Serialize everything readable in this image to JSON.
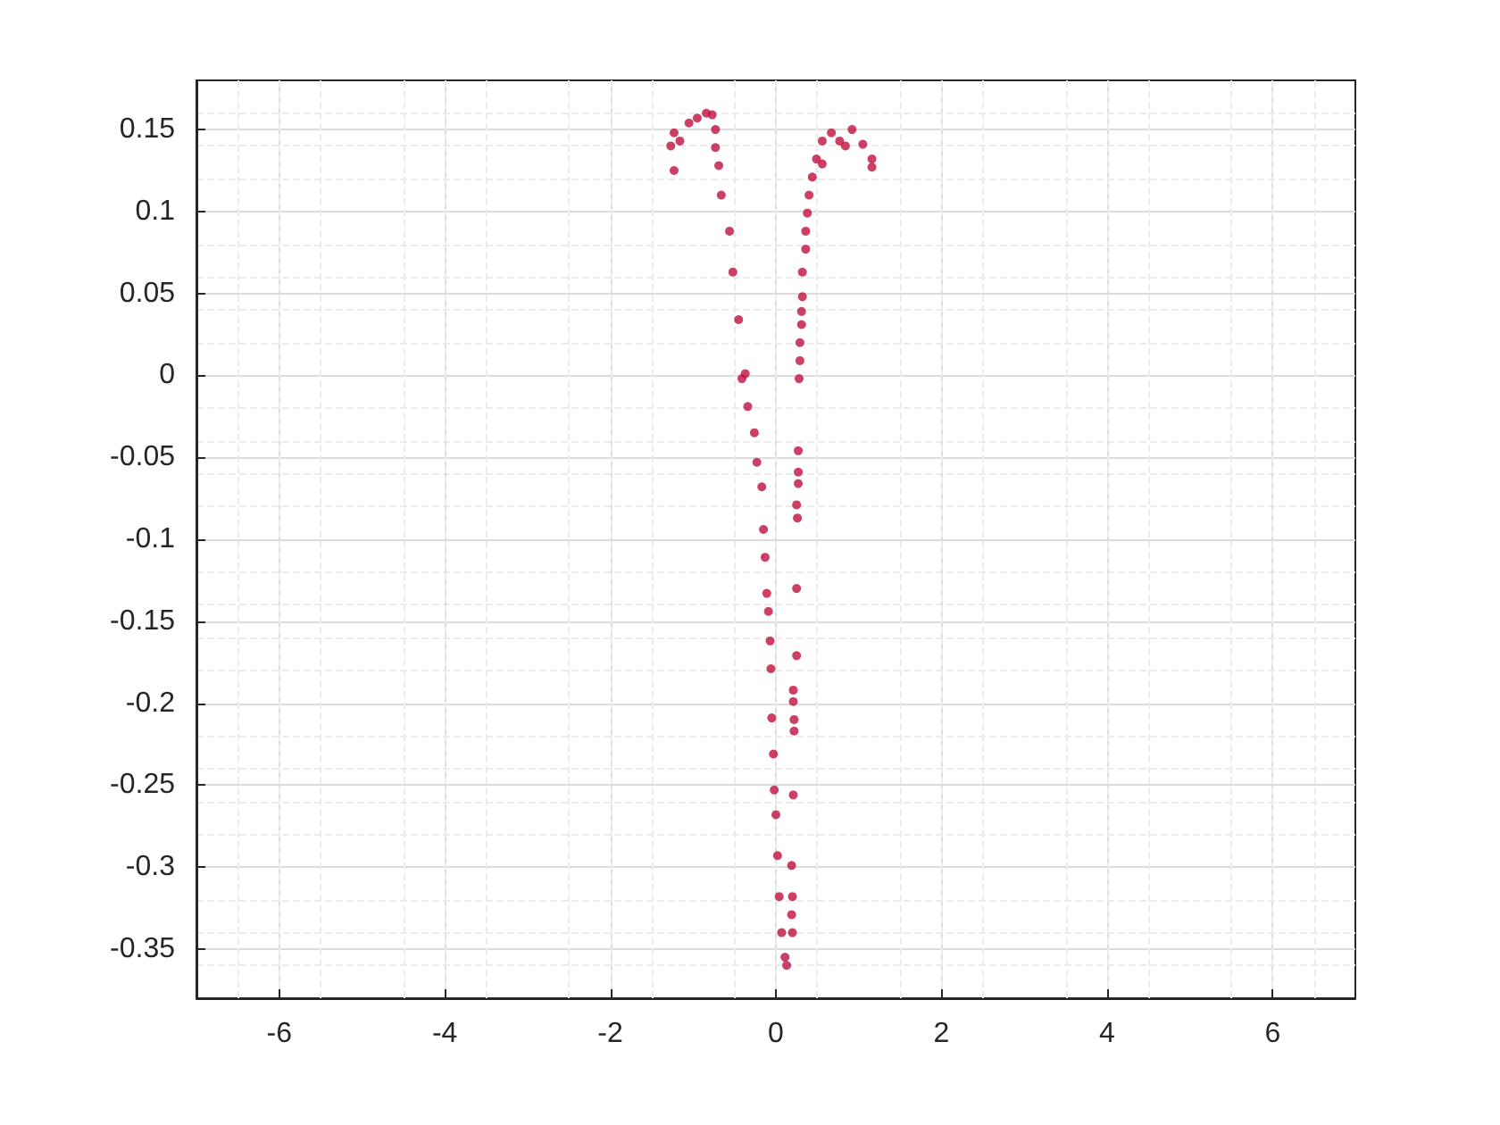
{
  "chart_data": {
    "type": "scatter",
    "marker": "circle",
    "grid": true,
    "xlim": [
      -7,
      7
    ],
    "xticks": [
      -6,
      -4,
      -2,
      0,
      2,
      4,
      6
    ],
    "ylim": [
      -0.38,
      0.18
    ],
    "yticks": [
      -0.35,
      -0.3,
      -0.25,
      -0.2,
      -0.15,
      -0.1,
      -0.05,
      0,
      0.05,
      0.1,
      0.15
    ],
    "series": [
      {
        "color": "#c0103f",
        "x": [
          -1.23,
          -1.27,
          -1.23,
          -1.16,
          -1.05,
          -0.95,
          -0.84,
          -0.77,
          -0.73,
          -0.73,
          -0.69,
          -0.66,
          -0.56,
          -0.52,
          -0.45,
          -0.41,
          -0.37,
          -0.34,
          -0.26,
          -0.23,
          -0.17,
          -0.15,
          -0.13,
          -0.11,
          -0.09,
          -0.07,
          -0.06,
          -0.05,
          -0.03,
          -0.02,
          0,
          0.02,
          0.04,
          0.07,
          0.11,
          0.13,
          0.2,
          0.19,
          0.2,
          0.19,
          0.21,
          0.22,
          0.22,
          0.21,
          0.21,
          0.25,
          0.25,
          0.26,
          0.25,
          0.27,
          0.27,
          0.27,
          0.28,
          0.29,
          0.29,
          0.31,
          0.31,
          0.32,
          0.32,
          0.36,
          0.36,
          0.38,
          0.4,
          0.44,
          0.49,
          0.56,
          0.56,
          0.67,
          0.77,
          0.84,
          0.92,
          1.05,
          1.16,
          1.16
        ],
        "values": [
          0.125,
          0.14,
          0.148,
          0.143,
          0.154,
          0.157,
          0.16,
          0.159,
          0.15,
          0.139,
          0.128,
          0.11,
          0.088,
          0.063,
          0.034,
          -0.002,
          0.001,
          -0.019,
          -0.035,
          -0.053,
          -0.068,
          -0.094,
          -0.111,
          -0.133,
          -0.144,
          -0.162,
          -0.179,
          -0.209,
          -0.231,
          -0.253,
          -0.268,
          -0.293,
          -0.318,
          -0.34,
          -0.355,
          -0.36,
          -0.34,
          -0.329,
          -0.318,
          -0.299,
          -0.256,
          -0.217,
          -0.21,
          -0.199,
          -0.192,
          -0.171,
          -0.13,
          -0.087,
          -0.079,
          -0.066,
          -0.059,
          -0.046,
          -0.002,
          0.009,
          0.02,
          0.031,
          0.039,
          0.048,
          0.063,
          0.077,
          0.088,
          0.099,
          0.11,
          0.121,
          0.132,
          0.143,
          0.129,
          0.148,
          0.143,
          0.14,
          0.15,
          0.141,
          0.132,
          0.127
        ]
      }
    ]
  }
}
